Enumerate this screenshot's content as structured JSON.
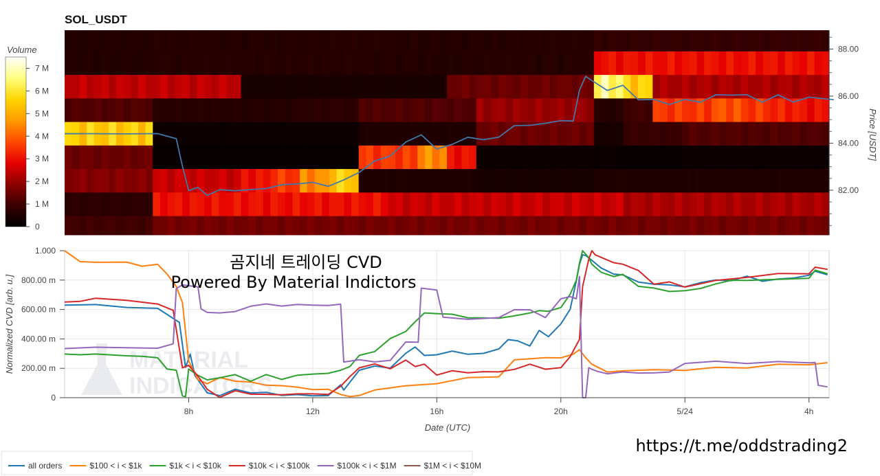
{
  "chart_data": [
    {
      "type": "heatmap",
      "title": "SOL_USDT",
      "colorbar": {
        "title": "Volume",
        "ticks": [
          "0",
          "1 M",
          "2 M",
          "3 M",
          "4 M",
          "5 M",
          "6 M",
          "7 M"
        ],
        "range": [
          0,
          7500000
        ],
        "colors": [
          "#000000",
          "#3a0000",
          "#8b0000",
          "#e60000",
          "#ff4a00",
          "#ff9a00",
          "#ffd500",
          "#ffff80",
          "#ffffff"
        ]
      },
      "y2label": "Price [USDT]",
      "y2ticks": [
        "82.00",
        "84.00",
        "86.00",
        "88.00"
      ],
      "y2lim": [
        80.1,
        88.8
      ],
      "time_columns": 26,
      "price_rows": [
        88.4,
        87.4,
        86.4,
        85.4,
        84.4,
        83.4,
        82.4,
        81.4,
        80.4
      ],
      "volume_matrix": [
        [
          0.55,
          0.55,
          0.55,
          0.6,
          0.6,
          0.6,
          0.58,
          0.58,
          0.58,
          0.6,
          0.6,
          0.58,
          0.58,
          0.58,
          0.6,
          0.6,
          0.62,
          0.62,
          0.8,
          0.8,
          0.85,
          0.85,
          0.85,
          0.85,
          0.85,
          0.85
        ],
        [
          0.55,
          0.55,
          0.55,
          0.62,
          0.62,
          0.62,
          0.6,
          0.6,
          0.6,
          0.6,
          0.6,
          0.58,
          0.58,
          0.58,
          0.62,
          0.62,
          0.62,
          0.62,
          3.0,
          3.0,
          3.0,
          3.0,
          3.0,
          3.0,
          3.0,
          3.0
        ],
        [
          2.4,
          2.4,
          2.4,
          2.4,
          2.4,
          2.4,
          0.4,
          0.4,
          0.4,
          0.4,
          0.4,
          0.4,
          0.4,
          1.5,
          1.5,
          1.5,
          1.5,
          1.5,
          6.5,
          5.5,
          2.2,
          2.2,
          2.2,
          2.2,
          2.2,
          2.2
        ],
        [
          1.2,
          1.2,
          1.2,
          0.6,
          0.6,
          0.6,
          0.6,
          0.6,
          0.7,
          0.7,
          1.2,
          1.2,
          1.2,
          1.2,
          2.0,
          2.0,
          2.0,
          2.0,
          0.6,
          1.0,
          3.5,
          3.5,
          3.8,
          3.5,
          3.2,
          3.0
        ],
        [
          5.5,
          5.5,
          5.5,
          0.2,
          0.2,
          0.2,
          0.2,
          0.2,
          0.2,
          0.2,
          0.5,
          0.5,
          0.5,
          0.5,
          1.5,
          1.5,
          1.5,
          1.5,
          0.4,
          0.9,
          0.9,
          1.2,
          1.2,
          1.2,
          1.2,
          1.2
        ],
        [
          1.5,
          1.5,
          1.5,
          0.1,
          0.1,
          0.1,
          0.1,
          0.1,
          0.1,
          0.1,
          3.5,
          3.5,
          4.5,
          3.0,
          0.2,
          0.2,
          0.2,
          0.2,
          0.2,
          0.1,
          0.1,
          0.2,
          0.2,
          0.2,
          0.2,
          0.2
        ],
        [
          1.8,
          1.8,
          1.8,
          2.5,
          2.5,
          2.5,
          3.0,
          3.5,
          4.5,
          5.5,
          0.5,
          0.5,
          0.5,
          0.5,
          0.4,
          0.4,
          0.4,
          0.4,
          0.5,
          0.5,
          0.5,
          0.5,
          0.5,
          0.5,
          0.5,
          0.5
        ],
        [
          0.7,
          0.7,
          0.7,
          3.0,
          3.0,
          3.0,
          3.0,
          3.0,
          3.0,
          3.0,
          3.0,
          2.5,
          2.5,
          2.5,
          2.5,
          2.5,
          2.5,
          2.5,
          2.5,
          2.2,
          2.2,
          2.2,
          2.2,
          2.2,
          2.2,
          2.2
        ],
        [
          1.0,
          1.0,
          1.0,
          1.6,
          1.6,
          1.6,
          1.6,
          1.6,
          1.6,
          1.6,
          1.6,
          1.6,
          1.6,
          1.6,
          1.6,
          1.6,
          1.6,
          1.6,
          1.6,
          1.6,
          1.6,
          1.6,
          1.6,
          1.6,
          1.6,
          1.6
        ]
      ],
      "price_series": {
        "t": [
          4.0,
          5.0,
          6.0,
          7.0,
          7.6,
          7.8,
          8.0,
          8.3,
          8.6,
          9.0,
          9.5,
          10.0,
          10.5,
          11.0,
          11.5,
          12.0,
          12.5,
          13.0,
          13.5,
          14.0,
          14.5,
          15.0,
          15.5,
          16.0,
          16.5,
          17.0,
          17.5,
          18.0,
          18.5,
          19.0,
          19.5,
          20.0,
          20.4,
          20.6,
          20.8,
          21.0,
          21.5,
          22.0,
          22.5,
          23.0,
          23.5,
          24.0,
          24.5,
          25.0,
          25.5,
          26.0,
          26.5,
          27.0,
          27.5,
          28.0,
          28.8
        ],
        "price": [
          84.4,
          84.4,
          84.4,
          84.4,
          84.2,
          83.0,
          82.0,
          82.1,
          81.8,
          82.0,
          82.0,
          82.0,
          82.1,
          82.2,
          82.3,
          82.3,
          82.2,
          82.4,
          82.8,
          83.2,
          83.5,
          84.0,
          84.4,
          83.7,
          84.0,
          84.2,
          84.2,
          84.2,
          84.8,
          84.7,
          84.9,
          84.9,
          85.0,
          86.2,
          86.9,
          86.6,
          86.3,
          86.4,
          85.9,
          85.8,
          85.7,
          85.8,
          85.8,
          86.0,
          86.1,
          86.0,
          85.8,
          86.0,
          85.8,
          85.9,
          85.9
        ],
        "color": "#4477aa"
      }
    },
    {
      "type": "line",
      "xlabel": "Date (UTC)",
      "ylabel": "Normalized CVD [arb. u.]",
      "xticks": [
        {
          "t": 8,
          "label": "8h"
        },
        {
          "t": 12,
          "label": "12h"
        },
        {
          "t": 16,
          "label": "16h"
        },
        {
          "t": 20,
          "label": "20h"
        },
        {
          "t": 24,
          "label": "5/24"
        },
        {
          "t": 28,
          "label": "4h"
        }
      ],
      "xlim": [
        4.0,
        28.65
      ],
      "ylim": [
        0,
        1
      ],
      "yticks": [
        "0",
        "200.00 m",
        "400.00 m",
        "600.00 m",
        "800.00 m",
        "1.000"
      ],
      "series": [
        {
          "name": "all orders",
          "color": "#1f77b4",
          "x": [
            4,
            5,
            6,
            7,
            7.7,
            7.9,
            8.05,
            8.2,
            8.6,
            9.0,
            9.5,
            10,
            10.5,
            11,
            11.5,
            12,
            12.5,
            12.9,
            13.0,
            13.5,
            14,
            14.5,
            15,
            15.3,
            15.6,
            16,
            16.5,
            17,
            17.5,
            18,
            18.3,
            18.6,
            19,
            19.3,
            19.6,
            20,
            20.3,
            20.5,
            20.6,
            20.7,
            20.8,
            21.0,
            21.3,
            21.7,
            22,
            22.5,
            23,
            23.5,
            24,
            24.5,
            25,
            25.5,
            26,
            26.5,
            27,
            27.5,
            28,
            28.2,
            28.6
          ],
          "y": [
            0.63,
            0.63,
            0.62,
            0.6,
            0.52,
            0.2,
            0.3,
            0.15,
            0.03,
            0.02,
            0.05,
            0.04,
            0.03,
            0.02,
            0.02,
            0.01,
            0.02,
            0.08,
            0.06,
            0.18,
            0.22,
            0.2,
            0.3,
            0.35,
            0.28,
            0.3,
            0.31,
            0.3,
            0.3,
            0.33,
            0.4,
            0.38,
            0.36,
            0.45,
            0.42,
            0.5,
            0.6,
            0.8,
            0.9,
            0.98,
            0.96,
            0.94,
            0.88,
            0.84,
            0.84,
            0.78,
            0.78,
            0.76,
            0.76,
            0.78,
            0.8,
            0.8,
            0.82,
            0.8,
            0.8,
            0.82,
            0.83,
            0.86,
            0.84
          ]
        },
        {
          "name": "$100 < i < $1k",
          "color": "#ff7f0e",
          "x": [
            4,
            4.5,
            5,
            6,
            6.5,
            7,
            7.3,
            7.6,
            7.8,
            8.0,
            8.3,
            8.6,
            9,
            9.5,
            10,
            10.5,
            11,
            11.5,
            12,
            12.5,
            12.9,
            13.2,
            13.5,
            14,
            15,
            16,
            17,
            18,
            18.5,
            19,
            19.5,
            20,
            20.4,
            20.6,
            20.8,
            21.0,
            21.5,
            22,
            23,
            24,
            25,
            26,
            27,
            28,
            28.6
          ],
          "y": [
            1.0,
            0.93,
            0.92,
            0.92,
            0.9,
            0.9,
            0.85,
            0.75,
            0.65,
            0.25,
            0.12,
            0.1,
            0.13,
            0.12,
            0.1,
            0.09,
            0.08,
            0.07,
            0.06,
            0.05,
            0.03,
            0.0,
            0.02,
            0.05,
            0.08,
            0.1,
            0.13,
            0.15,
            0.25,
            0.27,
            0.27,
            0.27,
            0.3,
            0.32,
            0.28,
            0.22,
            0.18,
            0.18,
            0.19,
            0.19,
            0.2,
            0.21,
            0.22,
            0.23,
            0.235
          ]
        },
        {
          "name": "$1k < i < $10k",
          "color": "#2ca02c",
          "x": [
            4,
            4.5,
            5,
            6,
            6.5,
            7,
            7.3,
            7.6,
            7.8,
            7.9,
            8.0,
            8.3,
            8.6,
            9,
            9.5,
            10,
            10.5,
            11,
            11.5,
            12,
            12.5,
            12.9,
            13.2,
            13.5,
            14,
            14.5,
            15,
            15.3,
            15.6,
            16,
            16.5,
            17,
            17.5,
            18,
            18.5,
            19,
            19.3,
            19.6,
            20,
            20.3,
            20.5,
            20.6,
            20.7,
            20.9,
            21.0,
            21.3,
            21.7,
            22,
            22.5,
            23,
            23.5,
            24,
            24.5,
            25,
            25.5,
            26,
            27,
            28,
            28.2,
            28.6
          ],
          "y": [
            0.29,
            0.3,
            0.29,
            0.29,
            0.28,
            0.27,
            0.2,
            0.18,
            0.02,
            0.0,
            0.2,
            0.15,
            0.12,
            0.14,
            0.15,
            0.12,
            0.15,
            0.13,
            0.15,
            0.16,
            0.17,
            0.18,
            0.22,
            0.28,
            0.32,
            0.4,
            0.45,
            0.52,
            0.57,
            0.58,
            0.56,
            0.55,
            0.54,
            0.54,
            0.56,
            0.57,
            0.6,
            0.58,
            0.62,
            0.7,
            0.8,
            0.92,
            1.0,
            0.96,
            0.9,
            0.86,
            0.82,
            0.84,
            0.76,
            0.74,
            0.73,
            0.72,
            0.75,
            0.77,
            0.8,
            0.8,
            0.8,
            0.82,
            0.86,
            0.85
          ]
        },
        {
          "name": "$10k < i < $100k",
          "color": "#d62728",
          "x": [
            4,
            4.5,
            5,
            6,
            7,
            7.5,
            7.8,
            8.0,
            8.3,
            8.6,
            9,
            9.5,
            10,
            10.5,
            11,
            11.5,
            12,
            12.5,
            12.9,
            13.2,
            13.5,
            14,
            14.5,
            15,
            15.3,
            15.6,
            16,
            16.5,
            17,
            17.5,
            18,
            18.5,
            19,
            19.5,
            20,
            20.3,
            20.6,
            20.7,
            20.9,
            21.0,
            21.1,
            21.3,
            21.7,
            22,
            22.5,
            23,
            23.5,
            24,
            24.5,
            25,
            26,
            27,
            28,
            28.2,
            28.6
          ],
          "y": [
            0.65,
            0.66,
            0.67,
            0.67,
            0.63,
            0.6,
            0.2,
            0.22,
            0.15,
            0.05,
            0.01,
            0.04,
            0.03,
            0.02,
            0.02,
            0.03,
            0.02,
            0.03,
            0.07,
            0.15,
            0.2,
            0.23,
            0.2,
            0.25,
            0.22,
            0.22,
            0.16,
            0.18,
            0.17,
            0.18,
            0.17,
            0.2,
            0.22,
            0.2,
            0.2,
            0.28,
            0.4,
            0.75,
            0.95,
            1.0,
            0.98,
            0.95,
            0.92,
            0.91,
            0.86,
            0.78,
            0.78,
            0.76,
            0.77,
            0.8,
            0.82,
            0.84,
            0.85,
            0.88,
            0.88
          ]
        },
        {
          "name": "$100k < i < $1M",
          "color": "#9467bd",
          "x": [
            4,
            5,
            6,
            7,
            7.5,
            7.6,
            7.8,
            8.3,
            8.4,
            8.6,
            9,
            9.5,
            10,
            10.5,
            11,
            11.5,
            12,
            12.5,
            12.9,
            13.0,
            13.5,
            14,
            14.5,
            15,
            15.4,
            15.5,
            16,
            16.2,
            17,
            18,
            18.5,
            19,
            19.5,
            20,
            20.3,
            20.5,
            20.6,
            20.7,
            20.8,
            20.9,
            21.0,
            21.2,
            21.5,
            22,
            22.5,
            23,
            23.5,
            24,
            25,
            26,
            27,
            28,
            28.2,
            28.3,
            28.6
          ],
          "y": [
            0.34,
            0.34,
            0.34,
            0.34,
            0.36,
            0.75,
            0.76,
            0.76,
            0.6,
            0.58,
            0.58,
            0.58,
            0.63,
            0.63,
            0.63,
            0.63,
            0.63,
            0.63,
            0.63,
            0.25,
            0.25,
            0.25,
            0.25,
            0.38,
            0.38,
            0.74,
            0.74,
            0.54,
            0.54,
            0.54,
            0.6,
            0.6,
            0.54,
            0.68,
            0.68,
            0.68,
            0.82,
            0.0,
            0.0,
            0.2,
            0.2,
            0.17,
            0.17,
            0.17,
            0.17,
            0.17,
            0.17,
            0.24,
            0.24,
            0.24,
            0.24,
            0.24,
            0.24,
            0.08,
            0.08
          ]
        },
        {
          "name": "$1M < i < $10M",
          "color": "#8c564b",
          "x": [],
          "y": []
        }
      ]
    }
  ],
  "overlay": {
    "title_line1": "곰지네 트레이딩 CVD",
    "title_line2": "Powered By Material Indictors",
    "watermark": "MATERIAL INDICATORS",
    "url": "https://t.me/oddstrading2"
  }
}
